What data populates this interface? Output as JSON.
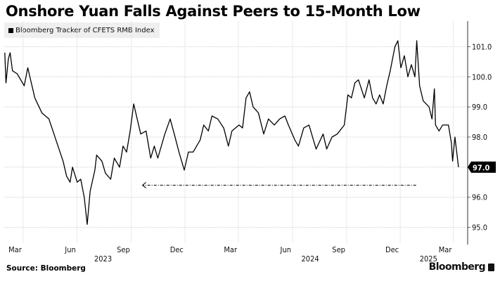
{
  "chart_data": {
    "type": "line",
    "title": "Onshore Yuan Falls Against Peers to 15-Month Low",
    "source": "Source: Bloomberg",
    "brand": "Bloomberg",
    "legend_position": "top-left",
    "grid": true,
    "xlim": [
      "2023-01-28",
      "2025-03-22"
    ],
    "ylim": [
      94.5,
      101.85
    ],
    "y_ticks": [
      95.0,
      96.0,
      97.0,
      98.0,
      99.0,
      100.0,
      101.0
    ],
    "y_tick_labels": [
      "95.0",
      "96.0",
      "97.0",
      "98.0",
      "99.0",
      "100.0",
      "101.0"
    ],
    "x_ticks": [
      {
        "date": "2023-03-01",
        "label": "Mar"
      },
      {
        "date": "2023-06-01",
        "label": "Jun"
      },
      {
        "date": "2023-09-01",
        "label": "Sep"
      },
      {
        "date": "2023-12-01",
        "label": "Dec"
      },
      {
        "date": "2024-03-01",
        "label": "Mar"
      },
      {
        "date": "2024-06-01",
        "label": "Jun"
      },
      {
        "date": "2024-09-01",
        "label": "Sep"
      },
      {
        "date": "2024-12-01",
        "label": "Dec"
      },
      {
        "date": "2025-03-01",
        "label": "Mar"
      }
    ],
    "year_labels": [
      {
        "date": "2023-07-15",
        "label": "2023"
      },
      {
        "date": "2024-07-01",
        "label": "2024"
      },
      {
        "date": "2025-01-18",
        "label": "2025"
      }
    ],
    "last_value_label": "97.0",
    "color": "#000000",
    "annotation": {
      "type": "dash-dot-arrow",
      "from": "2024-12-28",
      "to": "2023-09-20",
      "value": 96.4
    },
    "series": [
      {
        "name": "Bloomberg Tracker of CFETS RMB Index",
        "points": [
          [
            "2023-01-29",
            100.8
          ],
          [
            "2023-01-31",
            99.8
          ],
          [
            "2023-02-04",
            100.6
          ],
          [
            "2023-02-07",
            100.8
          ],
          [
            "2023-02-11",
            100.2
          ],
          [
            "2023-02-19",
            100.1
          ],
          [
            "2023-03-03",
            99.7
          ],
          [
            "2023-03-09",
            100.3
          ],
          [
            "2023-03-21",
            99.3
          ],
          [
            "2023-04-02",
            98.8
          ],
          [
            "2023-04-14",
            98.6
          ],
          [
            "2023-04-26",
            97.9
          ],
          [
            "2023-05-08",
            97.2
          ],
          [
            "2023-05-14",
            96.7
          ],
          [
            "2023-05-20",
            96.5
          ],
          [
            "2023-05-24",
            97.0
          ],
          [
            "2023-06-01",
            96.5
          ],
          [
            "2023-06-07",
            96.6
          ],
          [
            "2023-06-13",
            96.0
          ],
          [
            "2023-06-18",
            95.1
          ],
          [
            "2023-06-23",
            96.2
          ],
          [
            "2023-07-01",
            96.9
          ],
          [
            "2023-07-04",
            97.4
          ],
          [
            "2023-07-13",
            97.2
          ],
          [
            "2023-07-19",
            96.8
          ],
          [
            "2023-07-28",
            96.6
          ],
          [
            "2023-08-03",
            97.3
          ],
          [
            "2023-08-12",
            97.0
          ],
          [
            "2023-08-18",
            97.7
          ],
          [
            "2023-08-24",
            97.5
          ],
          [
            "2023-08-30",
            98.2
          ],
          [
            "2023-09-05",
            99.1
          ],
          [
            "2023-09-11",
            98.6
          ],
          [
            "2023-09-17",
            98.1
          ],
          [
            "2023-09-26",
            98.2
          ],
          [
            "2023-10-04",
            97.3
          ],
          [
            "2023-10-10",
            97.7
          ],
          [
            "2023-10-16",
            97.3
          ],
          [
            "2023-10-28",
            98.1
          ],
          [
            "2023-11-06",
            98.6
          ],
          [
            "2023-11-13",
            98.1
          ],
          [
            "2023-11-21",
            97.5
          ],
          [
            "2023-11-30",
            96.9
          ],
          [
            "2023-12-07",
            97.5
          ],
          [
            "2023-12-15",
            97.5
          ],
          [
            "2023-12-27",
            97.9
          ],
          [
            "2024-01-02",
            98.4
          ],
          [
            "2024-01-10",
            98.2
          ],
          [
            "2024-01-16",
            98.7
          ],
          [
            "2024-01-26",
            98.6
          ],
          [
            "2024-02-05",
            98.3
          ],
          [
            "2024-02-13",
            97.7
          ],
          [
            "2024-02-19",
            98.2
          ],
          [
            "2024-03-02",
            98.4
          ],
          [
            "2024-03-08",
            98.3
          ],
          [
            "2024-03-14",
            99.3
          ],
          [
            "2024-03-20",
            99.5
          ],
          [
            "2024-03-26",
            99.0
          ],
          [
            "2024-04-04",
            98.8
          ],
          [
            "2024-04-13",
            98.1
          ],
          [
            "2024-04-21",
            98.6
          ],
          [
            "2024-05-01",
            98.4
          ],
          [
            "2024-05-10",
            98.6
          ],
          [
            "2024-05-19",
            98.7
          ],
          [
            "2024-05-25",
            98.4
          ],
          [
            "2024-06-05",
            97.9
          ],
          [
            "2024-06-11",
            97.7
          ],
          [
            "2024-06-20",
            98.3
          ],
          [
            "2024-06-29",
            98.4
          ],
          [
            "2024-07-11",
            97.6
          ],
          [
            "2024-07-23",
            98.1
          ],
          [
            "2024-07-29",
            97.6
          ],
          [
            "2024-08-07",
            98.0
          ],
          [
            "2024-08-16",
            98.1
          ],
          [
            "2024-08-28",
            98.4
          ],
          [
            "2024-09-03",
            99.4
          ],
          [
            "2024-09-09",
            99.3
          ],
          [
            "2024-09-15",
            99.8
          ],
          [
            "2024-09-21",
            99.9
          ],
          [
            "2024-10-01",
            99.3
          ],
          [
            "2024-10-09",
            99.9
          ],
          [
            "2024-10-15",
            99.3
          ],
          [
            "2024-10-21",
            99.1
          ],
          [
            "2024-10-27",
            99.4
          ],
          [
            "2024-11-02",
            99.1
          ],
          [
            "2024-11-08",
            99.7
          ],
          [
            "2024-11-14",
            100.2
          ],
          [
            "2024-11-22",
            101.0
          ],
          [
            "2024-11-27",
            101.2
          ],
          [
            "2024-12-02",
            100.3
          ],
          [
            "2024-12-08",
            100.7
          ],
          [
            "2024-12-14",
            100.0
          ],
          [
            "2024-12-20",
            100.4
          ],
          [
            "2024-12-26",
            100.0
          ],
          [
            "2024-12-29",
            101.2
          ],
          [
            "2025-01-03",
            99.7
          ],
          [
            "2025-01-09",
            99.2
          ],
          [
            "2025-01-19",
            99.0
          ],
          [
            "2025-01-24",
            98.6
          ],
          [
            "2025-01-28",
            99.6
          ],
          [
            "2025-01-30",
            98.4
          ],
          [
            "2025-02-05",
            98.2
          ],
          [
            "2025-02-11",
            98.4
          ],
          [
            "2025-02-21",
            98.4
          ],
          [
            "2025-02-26",
            97.8
          ],
          [
            "2025-02-28",
            97.2
          ],
          [
            "2025-03-04",
            98.0
          ],
          [
            "2025-03-10",
            97.0
          ]
        ]
      }
    ]
  }
}
